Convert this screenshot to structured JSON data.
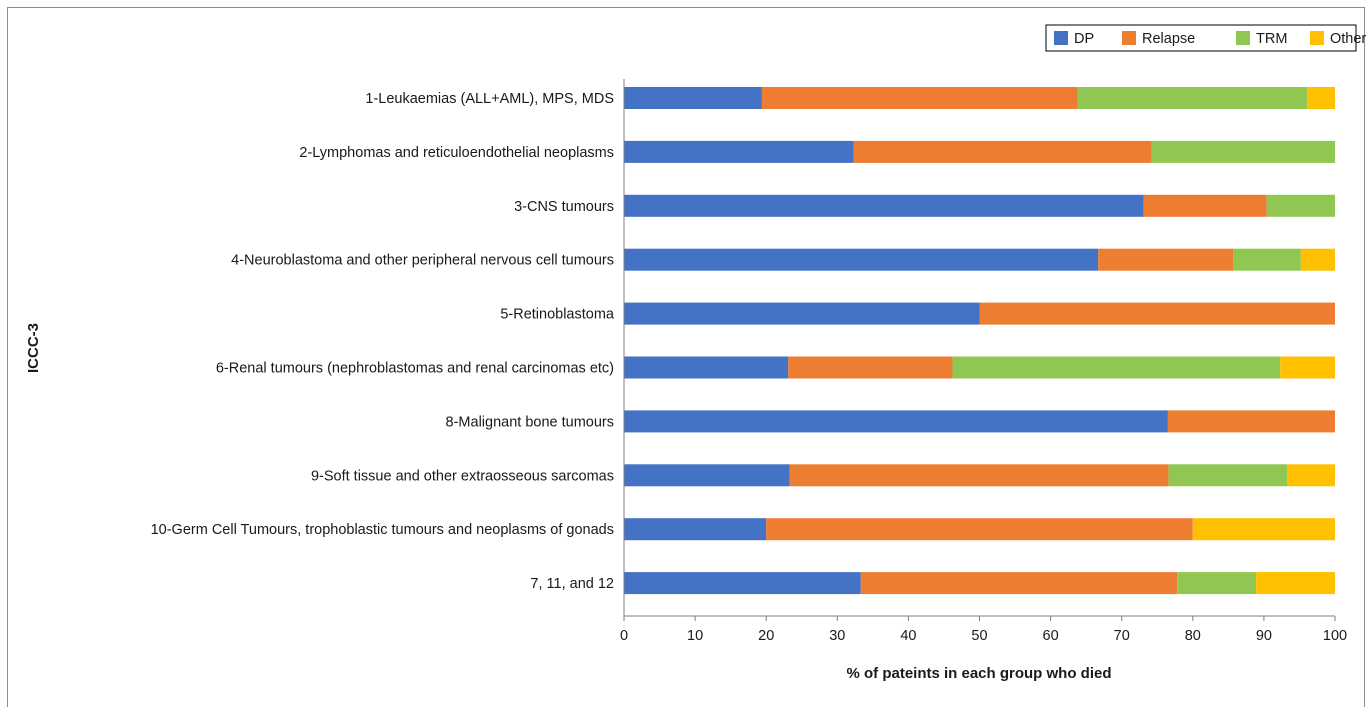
{
  "chart_data": {
    "type": "bar",
    "orientation": "horizontal",
    "stacked": true,
    "categories": [
      "1-Leukaemias (ALL+AML), MPS, MDS",
      "2-Lymphomas and reticuloendothelial neoplasms",
      "3-CNS tumours",
      "4-Neuroblastoma and other peripheral nervous cell tumours",
      "5-Retinoblastoma",
      "6-Renal tumours (nephroblastomas and renal carcinomas etc)",
      "8-Malignant bone tumours",
      "9-Soft tissue and other extraosseous sarcomas",
      "10-Germ Cell Tumours, trophoblastic tumours and neoplasms of gonads",
      "7, 11, and 12"
    ],
    "series": [
      {
        "name": "DP",
        "color": "#4472C4",
        "values": [
          19.4,
          32.3,
          73.1,
          66.7,
          50.0,
          23.1,
          76.5,
          23.3,
          20.0,
          33.3
        ]
      },
      {
        "name": "Relapse",
        "color": "#ED7D31",
        "values": [
          44.4,
          41.9,
          17.3,
          19.0,
          50.0,
          23.1,
          23.5,
          53.3,
          60.0,
          44.5
        ]
      },
      {
        "name": "TRM",
        "color": "#8FC752",
        "values": [
          32.3,
          25.8,
          9.6,
          9.5,
          0,
          46.1,
          0,
          16.7,
          0,
          11.1
        ]
      },
      {
        "name": "Other",
        "color": "#FFC000",
        "values": [
          3.9,
          0,
          0,
          4.8,
          0,
          7.7,
          0,
          6.7,
          20.0,
          11.1
        ]
      }
    ],
    "xlabel": "% of pateints in each group who died",
    "ylabel": "ICCC-3",
    "xlim": [
      0,
      100
    ],
    "xticks": [
      "0",
      "10",
      "20",
      "30",
      "40",
      "50",
      "60",
      "70",
      "80",
      "90",
      "100"
    ],
    "grid": false,
    "legend_position": "top-right"
  }
}
